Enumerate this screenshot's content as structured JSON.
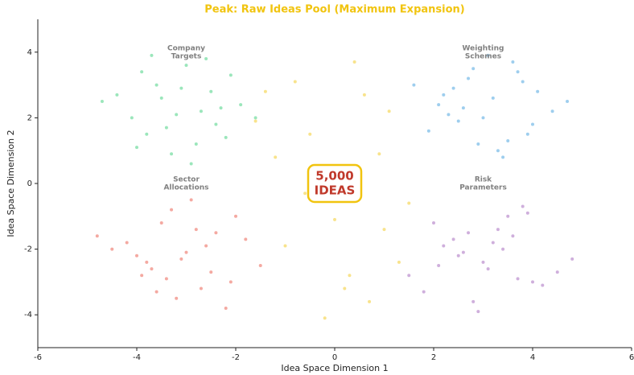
{
  "chart_data": {
    "type": "scatter",
    "title": "Peak: Raw Ideas Pool (Maximum Expansion)",
    "xlabel": "Idea Space Dimension 1",
    "ylabel": "Idea Space Dimension 2",
    "xlim": [
      -6,
      6
    ],
    "ylim": [
      -5,
      5
    ],
    "xticks": [
      -6,
      -4,
      -2,
      0,
      2,
      4,
      6
    ],
    "yticks": [
      -4,
      -2,
      0,
      2,
      4
    ],
    "grid": false,
    "series": [
      {
        "color": "#58d68d",
        "x": [
          -3.2,
          -2.5,
          -3.8,
          -2.1,
          -3.5,
          -4.1,
          -2.8,
          -3.0,
          -1.9,
          -3.6,
          -2.4,
          -4.4,
          -3.3,
          -2.7,
          -3.9,
          -2.2,
          -3.1,
          -4.0,
          -2.6,
          -3.4,
          -1.6,
          -4.7,
          -2.9,
          -3.7,
          -2.3
        ],
        "values": [
          2.1,
          2.8,
          1.5,
          3.3,
          2.6,
          2.0,
          1.2,
          3.6,
          2.4,
          3.0,
          1.8,
          2.7,
          0.9,
          2.2,
          3.4,
          1.4,
          2.9,
          1.1,
          3.8,
          1.7,
          2.0,
          2.5,
          0.6,
          3.9,
          2.3
        ]
      },
      {
        "color": "#5dade2",
        "x": [
          3.2,
          2.5,
          3.8,
          2.1,
          3.5,
          4.1,
          2.8,
          3.0,
          1.9,
          3.6,
          2.4,
          4.4,
          3.3,
          2.7,
          3.9,
          2.2,
          3.1,
          4.0,
          2.6,
          3.4,
          1.6,
          4.7,
          2.9,
          3.7,
          2.3
        ],
        "values": [
          2.6,
          1.9,
          3.1,
          2.4,
          1.3,
          2.8,
          3.5,
          2.0,
          1.6,
          3.7,
          2.9,
          2.2,
          1.0,
          3.2,
          1.5,
          2.7,
          3.9,
          1.8,
          2.3,
          0.8,
          3.0,
          2.5,
          1.2,
          3.4,
          2.1
        ]
      },
      {
        "color": "#ec7063",
        "x": [
          -3.0,
          -2.4,
          -3.7,
          -2.0,
          -3.4,
          -4.2,
          -2.7,
          -3.1,
          -1.8,
          -3.5,
          -2.5,
          -4.5,
          -3.2,
          -2.8,
          -3.8,
          -2.1,
          -3.3,
          -4.0,
          -2.6,
          -3.6,
          -1.5,
          -4.8,
          -2.9,
          -3.9,
          -2.2
        ],
        "values": [
          -2.1,
          -1.5,
          -2.6,
          -1.0,
          -2.9,
          -1.8,
          -3.2,
          -2.3,
          -1.7,
          -1.2,
          -2.7,
          -2.0,
          -3.5,
          -1.4,
          -2.4,
          -3.0,
          -0.8,
          -2.2,
          -1.9,
          -3.3,
          -2.5,
          -1.6,
          -0.5,
          -2.8,
          -3.8
        ]
      },
      {
        "color": "#af7ac5",
        "x": [
          3.0,
          2.4,
          3.7,
          2.0,
          3.4,
          4.2,
          2.7,
          3.1,
          1.8,
          3.5,
          2.5,
          4.5,
          3.2,
          2.8,
          3.8,
          2.1,
          3.3,
          4.0,
          2.6,
          3.6,
          1.5,
          4.8,
          2.9,
          3.9,
          2.2
        ],
        "values": [
          -2.4,
          -1.7,
          -2.9,
          -1.2,
          -2.0,
          -3.1,
          -1.5,
          -2.6,
          -3.3,
          -1.0,
          -2.2,
          -2.7,
          -1.8,
          -3.6,
          -0.7,
          -2.5,
          -1.4,
          -3.0,
          -2.1,
          -1.6,
          -2.8,
          -2.3,
          -3.9,
          -0.9,
          -1.9
        ]
      },
      {
        "color": "#f4d03f",
        "x": [
          -0.5,
          0.3,
          -1.2,
          1.1,
          0.0,
          -0.8,
          0.7,
          -1.6,
          1.5,
          -0.2,
          0.9,
          -1.0,
          0.4,
          -0.6,
          1.3,
          -1.4,
          0.2,
          0.6,
          -0.3,
          1.0
        ],
        "values": [
          1.5,
          -2.8,
          0.8,
          2.2,
          -1.1,
          3.1,
          -3.6,
          1.9,
          -0.6,
          -4.1,
          0.9,
          -1.9,
          3.7,
          -0.3,
          -2.4,
          2.8,
          -3.2,
          2.7,
          0.3,
          -1.4
        ]
      }
    ],
    "annotations": [
      {
        "lines": [
          "Company",
          "Targets"
        ],
        "x": -3,
        "y": 4
      },
      {
        "lines": [
          "Weighting",
          "Schemes"
        ],
        "x": 3,
        "y": 4
      },
      {
        "lines": [
          "Sector",
          "Allocations"
        ],
        "x": -3,
        "y": 0
      },
      {
        "lines": [
          "Risk",
          "Parameters"
        ],
        "x": 3,
        "y": 0
      }
    ],
    "callout": {
      "lines": [
        "5,000",
        "IDEAS"
      ],
      "x": 0,
      "y": 0
    }
  }
}
